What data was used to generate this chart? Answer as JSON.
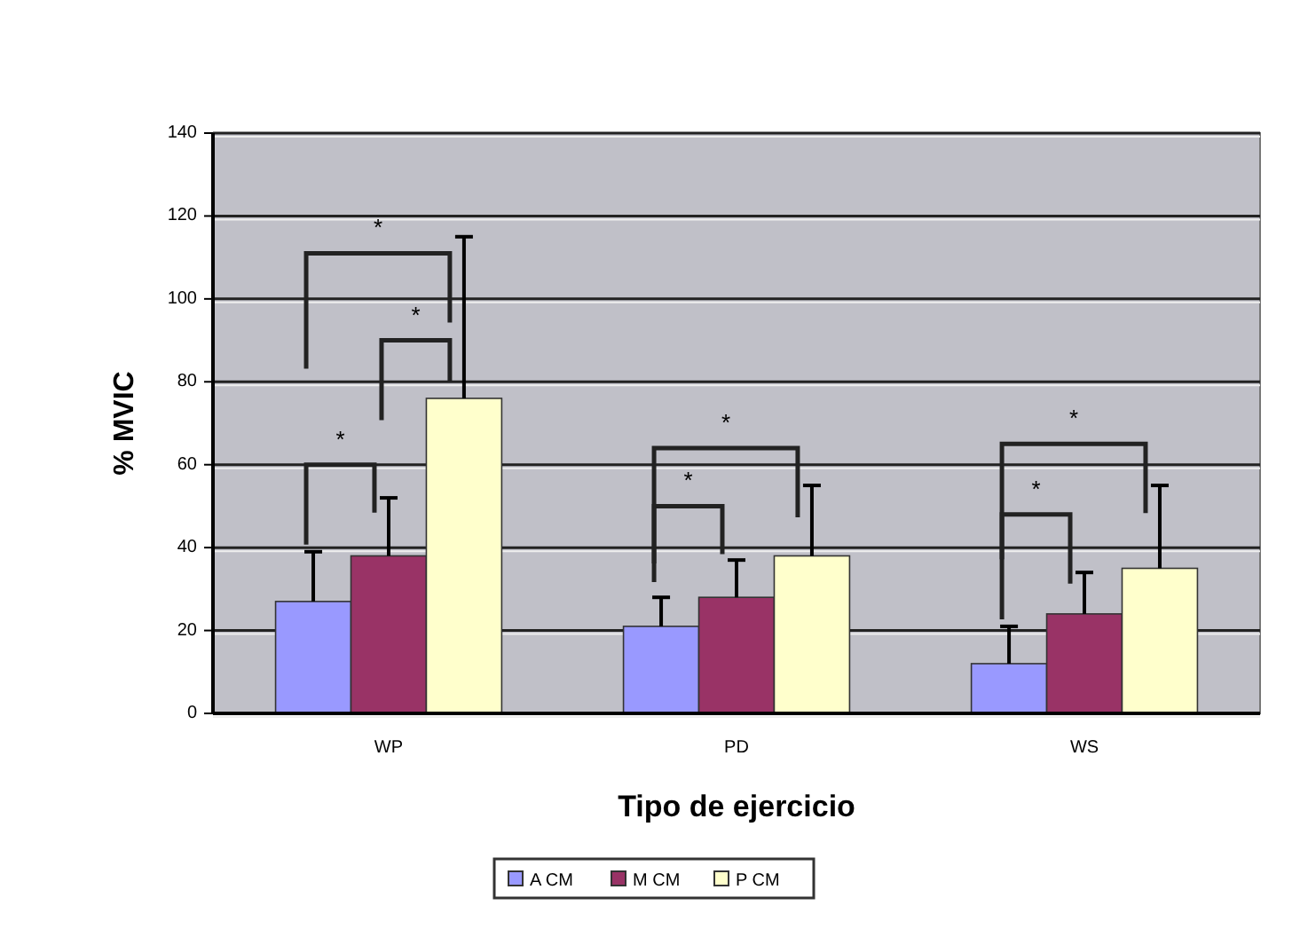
{
  "chart_data": {
    "type": "bar",
    "xlabel": "Tipo de ejercicio",
    "ylabel": "% MVIC",
    "categories": [
      "WP",
      "PD",
      "WS"
    ],
    "series": [
      {
        "name": "A CM",
        "color": "#9999ff",
        "values": [
          27,
          21,
          12
        ],
        "errors": [
          [
            27,
            39
          ],
          [
            21,
            28
          ],
          [
            12,
            21
          ]
        ]
      },
      {
        "name": "M CM",
        "color": "#993366",
        "values": [
          38,
          28,
          24
        ],
        "errors": [
          [
            38,
            52
          ],
          [
            28,
            37
          ],
          [
            24,
            34
          ]
        ]
      },
      {
        "name": "P CM",
        "color": "#ffffcc",
        "values": [
          76,
          38,
          35
        ],
        "errors": [
          [
            76,
            115
          ],
          [
            38,
            55
          ],
          [
            35,
            55
          ]
        ]
      }
    ],
    "ylim": [
      0,
      140
    ],
    "yticks": [
      0,
      20,
      40,
      60,
      80,
      100,
      120,
      140
    ],
    "grid": "y",
    "legend": "bottom",
    "annotations": [
      "*",
      "*",
      "*",
      "*",
      "*",
      "*",
      "*"
    ]
  }
}
